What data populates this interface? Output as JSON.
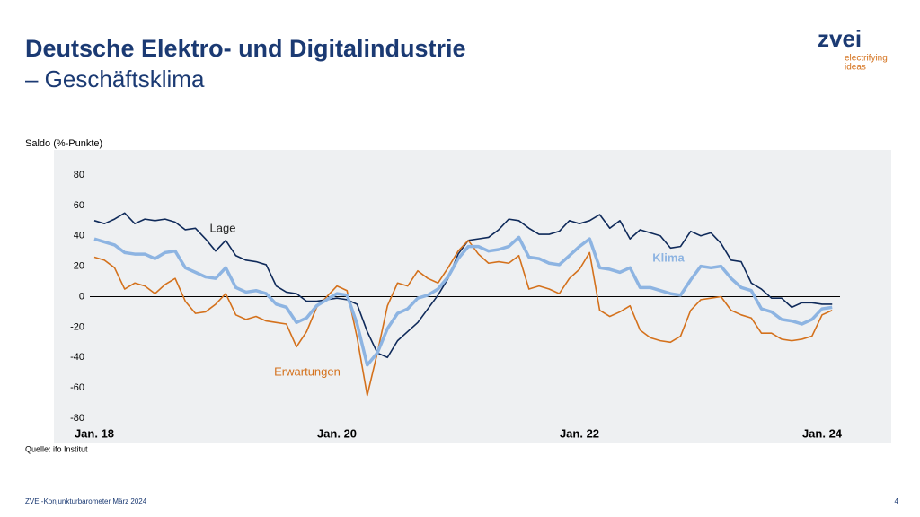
{
  "header": {
    "title": "Deutsche Elektro- und Digitalindustrie",
    "subtitle": "– Geschäftsklima"
  },
  "logo": {
    "name": "zvei",
    "tagline": [
      "electrifying",
      "ideas"
    ]
  },
  "chart_data": {
    "type": "line",
    "ylabel": "Saldo (%-Punkte)",
    "categories": [
      "Jan. 18",
      null,
      null,
      null,
      null,
      null,
      null,
      null,
      null,
      null,
      null,
      null,
      null,
      null,
      null,
      null,
      null,
      null,
      null,
      null,
      null,
      null,
      null,
      null,
      "Jan. 20",
      null,
      null,
      null,
      null,
      null,
      null,
      null,
      null,
      null,
      null,
      null,
      null,
      null,
      null,
      null,
      null,
      null,
      null,
      null,
      null,
      null,
      null,
      null,
      "Jan. 22",
      null,
      null,
      null,
      null,
      null,
      null,
      null,
      null,
      null,
      null,
      null,
      null,
      null,
      null,
      null,
      null,
      null,
      null,
      null,
      null,
      null,
      null,
      null,
      "Jan. 24",
      null
    ],
    "series": [
      {
        "name": "Lage",
        "color": "#0f2a5a",
        "values": [
          50,
          48,
          51,
          55,
          48,
          51,
          50,
          51,
          49,
          44,
          45,
          38,
          30,
          37,
          27,
          24,
          23,
          21,
          7,
          3,
          2,
          -3,
          -3,
          -2,
          -1,
          -2,
          -5,
          -23,
          -37,
          -40,
          -29,
          -23,
          -17,
          -8,
          1,
          12,
          28,
          37,
          38,
          39,
          44,
          51,
          50,
          45,
          41,
          41,
          43,
          50,
          48,
          50,
          54,
          45,
          50,
          38,
          44,
          42,
          40,
          32,
          33,
          43,
          40,
          42,
          35,
          24,
          23,
          9,
          5,
          -1,
          -1,
          -7,
          -4,
          -4,
          -5,
          -5
        ]
      },
      {
        "name": "Erwartungen",
        "color": "#d4711c",
        "values": [
          26,
          24,
          19,
          5,
          9,
          7,
          2,
          8,
          12,
          -3,
          -11,
          -10,
          -5,
          2,
          -12,
          -15,
          -13,
          -16,
          -17,
          -18,
          -33,
          -23,
          -7,
          0,
          7,
          4,
          -27,
          -65,
          -37,
          -6,
          9,
          7,
          17,
          12,
          9,
          19,
          30,
          37,
          28,
          22,
          23,
          22,
          27,
          5,
          7,
          5,
          2,
          12,
          18,
          29,
          -9,
          -13,
          -10,
          -6,
          -22,
          -27,
          -29,
          -30,
          -26,
          -9,
          -2,
          -1,
          0,
          -9,
          -12,
          -14,
          -24,
          -24,
          -28,
          -29,
          -28,
          -26,
          -12,
          -9
        ]
      },
      {
        "name": "Klima",
        "color": "#8db4e2",
        "values": [
          38,
          36,
          34,
          29,
          28,
          28,
          25,
          29,
          30,
          19,
          16,
          13,
          12,
          19,
          6,
          3,
          4,
          2,
          -5,
          -7,
          -17,
          -14,
          -6,
          -2,
          2,
          1,
          -18,
          -45,
          -37,
          -21,
          -11,
          -8,
          -1,
          1,
          5,
          13,
          25,
          33,
          33,
          30,
          31,
          33,
          39,
          26,
          25,
          22,
          21,
          27,
          33,
          38,
          19,
          18,
          16,
          19,
          6,
          6,
          4,
          2,
          1,
          11,
          20,
          19,
          20,
          12,
          6,
          4,
          -8,
          -10,
          -15,
          -16,
          -18,
          -15,
          -8,
          -7
        ]
      }
    ],
    "ylim": [
      -80,
      80
    ],
    "yticks": [
      -80,
      -60,
      -40,
      -20,
      0,
      20,
      40,
      60,
      80
    ],
    "grid": false
  },
  "source": "Quelle: ifo Institut",
  "footer": {
    "text": "ZVEI-Konjunkturbarometer März 2024",
    "page": "4"
  }
}
